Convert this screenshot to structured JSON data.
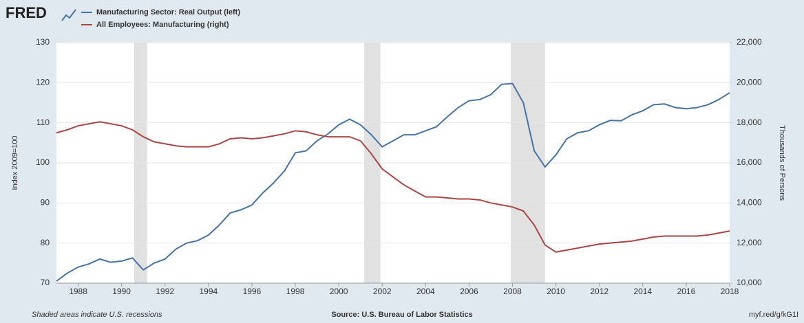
{
  "chart_data": {
    "type": "line",
    "logo": "FRED",
    "note": "Shaded areas indicate U.S. recessions",
    "source": "Source: U.S. Bureau of Labor Statistics",
    "url": "myf.red/g/kG1I",
    "ylabel": "Index 2009=100",
    "y2label": "Thousands of Persons",
    "x": [
      1987,
      1987.5,
      1988,
      1988.5,
      1989,
      1989.5,
      1990,
      1990.5,
      1991,
      1991.5,
      1992,
      1992.5,
      1993,
      1993.5,
      1994,
      1994.5,
      1995,
      1995.5,
      1996,
      1996.5,
      1997,
      1997.5,
      1998,
      1998.5,
      1999,
      1999.5,
      2000,
      2000.5,
      2001,
      2001.5,
      2002,
      2002.5,
      2003,
      2003.5,
      2004,
      2004.5,
      2005,
      2005.5,
      2006,
      2006.5,
      2007,
      2007.5,
      2008,
      2008.5,
      2009,
      2009.5,
      2010,
      2010.5,
      2011,
      2011.5,
      2012,
      2012.5,
      2013,
      2013.5,
      2014,
      2014.5,
      2015,
      2015.5,
      2016,
      2016.5,
      2017,
      2017.5,
      2018
    ],
    "series": [
      {
        "name": "Manufacturing Sector: Real Output (left)",
        "color": "#4572a7",
        "values": [
          70.5,
          72.5,
          74,
          74.8,
          76,
          75.2,
          75.5,
          76.3,
          73.3,
          75,
          76,
          78.5,
          80,
          80.6,
          82,
          84.5,
          87.5,
          88.3,
          89.5,
          92.5,
          95,
          98,
          102.5,
          103,
          105.5,
          107.2,
          109.5,
          110.9,
          109.5,
          107,
          104,
          105.5,
          107,
          107,
          108,
          109,
          111.5,
          113.8,
          115.5,
          115.8,
          117,
          119.6,
          119.8,
          115,
          103,
          99,
          102,
          106,
          107.5,
          108,
          109.5,
          110.6,
          110.5,
          112,
          113,
          114.5,
          114.7,
          113.8,
          113.5,
          113.8,
          114.5,
          115.8,
          117.5
        ]
      },
      {
        "name": "All Employees: Manufacturing (right)",
        "color": "#aa4643",
        "axis": "y2",
        "values": [
          17500,
          17650,
          17850,
          17950,
          18050,
          17950,
          17850,
          17650,
          17300,
          17050,
          16950,
          16850,
          16800,
          16800,
          16800,
          16950,
          17200,
          17250,
          17200,
          17250,
          17350,
          17450,
          17600,
          17550,
          17400,
          17300,
          17300,
          17300,
          17100,
          16450,
          15700,
          15300,
          14900,
          14600,
          14300,
          14300,
          14250,
          14200,
          14200,
          14150,
          14000,
          13900,
          13800,
          13600,
          12900,
          11900,
          11550,
          11650,
          11750,
          11850,
          11950,
          12000,
          12050,
          12100,
          12200,
          12300,
          12350,
          12350,
          12350,
          12350,
          12400,
          12500,
          12600
        ]
      }
    ],
    "recessions": [
      [
        1990.58,
        1991.17
      ],
      [
        2001.17,
        2001.92
      ],
      [
        2007.92,
        2009.5
      ]
    ],
    "recession_color": "#e1e1e1",
    "xlim": [
      1987,
      2018
    ],
    "xticks": [
      1988,
      1990,
      1992,
      1994,
      1996,
      1998,
      2000,
      2002,
      2004,
      2006,
      2008,
      2010,
      2012,
      2014,
      2016,
      2018
    ],
    "ylim": [
      70,
      130
    ],
    "yticks": [
      70,
      80,
      90,
      100,
      110,
      120,
      130
    ],
    "y2lim": [
      10000,
      22000
    ],
    "y2ticks": [
      {
        "value": 10000,
        "label": "10,000"
      },
      {
        "value": 12000,
        "label": "12,000"
      },
      {
        "value": 14000,
        "label": "14,000"
      },
      {
        "value": 16000,
        "label": "16,000"
      },
      {
        "value": 18000,
        "label": "18,000"
      },
      {
        "value": 20000,
        "label": "20,000"
      },
      {
        "value": 22000,
        "label": "22,000"
      }
    ],
    "grid": true
  }
}
